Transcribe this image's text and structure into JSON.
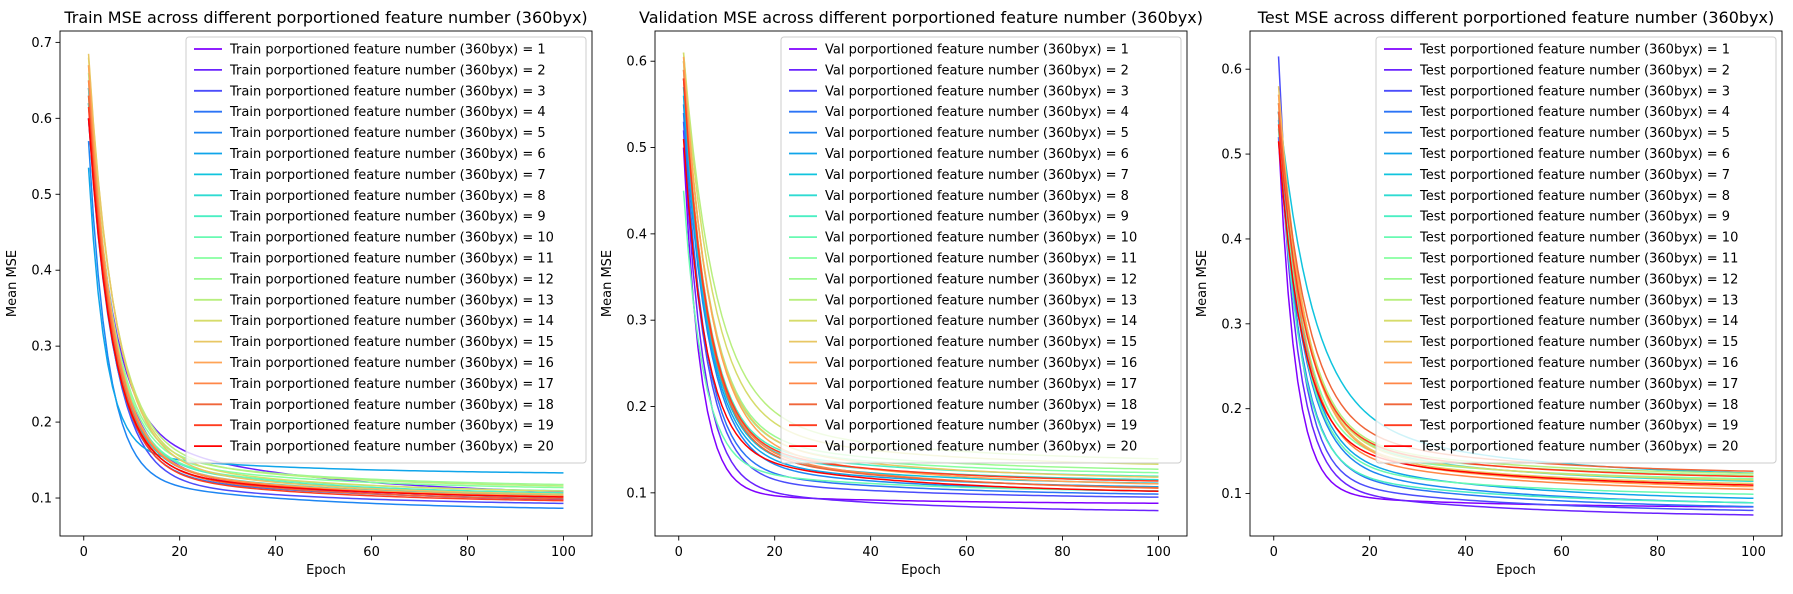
{
  "chart_data": [
    {
      "type": "line",
      "title": "Train MSE across different porportioned feature number (360byx)",
      "xlabel": "Epoch",
      "ylabel": "Mean MSE",
      "xlim": [
        -4.95,
        105.95
      ],
      "ylim": [
        0.05,
        0.715
      ],
      "xticks": [
        0,
        20,
        40,
        60,
        80,
        100
      ],
      "yticks": [
        0.1,
        0.2,
        0.3,
        0.4,
        0.5,
        0.6,
        0.7
      ],
      "xtick_labels": [
        "0",
        "20",
        "40",
        "60",
        "80",
        "100"
      ],
      "ytick_labels": [
        "0.1",
        "0.2",
        "0.3",
        "0.4",
        "0.5",
        "0.6",
        "0.7"
      ],
      "grid": false,
      "legend": "upper right",
      "series": [
        {
          "name": "Train porportioned feature number (360byx) = 1",
          "color": "#8000ff",
          "start": 0.6,
          "end": 0.094,
          "knee": 0.15,
          "tau": 5.5
        },
        {
          "name": "Train porportioned feature number (360byx) = 2",
          "color": "#6a23fe",
          "start": 0.64,
          "end": 0.102,
          "knee": 0.19,
          "tau": 5.0
        },
        {
          "name": "Train porportioned feature number (360byx) = 3",
          "color": "#4b4dfb",
          "start": 0.62,
          "end": 0.09,
          "knee": 0.13,
          "tau": 5.0
        },
        {
          "name": "Train porportioned feature number (360byx) = 4",
          "color": "#2c74f6",
          "start": 0.6,
          "end": 0.096,
          "knee": 0.14,
          "tau": 5.0
        },
        {
          "name": "Train porportioned feature number (360byx) = 5",
          "color": "#1e86f2",
          "start": 0.57,
          "end": 0.083,
          "knee": 0.13,
          "tau": 4.0
        },
        {
          "name": "Train porportioned feature number (360byx) = 6",
          "color": "#0fa5ea",
          "start": 0.535,
          "end": 0.131,
          "knee": 0.16,
          "tau": 3.5
        },
        {
          "name": "Train porportioned feature number (360byx) = 7",
          "color": "#10c4de",
          "start": 0.62,
          "end": 0.098,
          "knee": 0.15,
          "tau": 5.0
        },
        {
          "name": "Train porportioned feature number (360byx) = 8",
          "color": "#2edbd2",
          "start": 0.64,
          "end": 0.1,
          "knee": 0.15,
          "tau": 5.0
        },
        {
          "name": "Train porportioned feature number (360byx) = 9",
          "color": "#4aefc3",
          "start": 0.62,
          "end": 0.103,
          "knee": 0.155,
          "tau": 5.0
        },
        {
          "name": "Train porportioned feature number (360byx) = 10",
          "color": "#68fab2",
          "start": 0.63,
          "end": 0.106,
          "knee": 0.155,
          "tau": 5.0
        },
        {
          "name": "Train porportioned feature number (360byx) = 11",
          "color": "#86ffa0",
          "start": 0.65,
          "end": 0.11,
          "knee": 0.16,
          "tau": 5.0
        },
        {
          "name": "Train porportioned feature number (360byx) = 12",
          "color": "#9cfa92",
          "start": 0.66,
          "end": 0.114,
          "knee": 0.165,
          "tau": 5.0
        },
        {
          "name": "Train porportioned feature number (360byx) = 13",
          "color": "#b8ef7f",
          "start": 0.67,
          "end": 0.112,
          "knee": 0.165,
          "tau": 5.5
        },
        {
          "name": "Train porportioned feature number (360byx) = 14",
          "color": "#d6dc6b",
          "start": 0.68,
          "end": 0.105,
          "knee": 0.16,
          "tau": 5.5
        },
        {
          "name": "Train porportioned feature number (360byx) = 15",
          "color": "#e8c764",
          "start": 0.685,
          "end": 0.101,
          "knee": 0.155,
          "tau": 5.5
        },
        {
          "name": "Train porportioned feature number (360byx) = 16",
          "color": "#ffa456",
          "start": 0.67,
          "end": 0.099,
          "knee": 0.15,
          "tau": 5.0
        },
        {
          "name": "Train porportioned feature number (360byx) = 17",
          "color": "#ff8748",
          "start": 0.65,
          "end": 0.097,
          "knee": 0.15,
          "tau": 5.0
        },
        {
          "name": "Train porportioned feature number (360byx) = 18",
          "color": "#f0663a",
          "start": 0.63,
          "end": 0.095,
          "knee": 0.145,
          "tau": 5.0
        },
        {
          "name": "Train porportioned feature number (360byx) = 19",
          "color": "#ff3c1f",
          "start": 0.615,
          "end": 0.093,
          "knee": 0.14,
          "tau": 5.0
        },
        {
          "name": "Train porportioned feature number (360byx) = 20",
          "color": "#ff0000",
          "start": 0.6,
          "end": 0.098,
          "knee": 0.145,
          "tau": 5.0
        }
      ]
    },
    {
      "type": "line",
      "title": "Validation MSE across different porportioned feature number (360byx)",
      "xlabel": "Epoch",
      "ylabel": "Mean MSE",
      "xlim": [
        -4.95,
        105.95
      ],
      "ylim": [
        0.05,
        0.635
      ],
      "xticks": [
        0,
        20,
        40,
        60,
        80,
        100
      ],
      "yticks": [
        0.1,
        0.2,
        0.3,
        0.4,
        0.5,
        0.6
      ],
      "xtick_labels": [
        "0",
        "20",
        "40",
        "60",
        "80",
        "100"
      ],
      "ytick_labels": [
        "0.1",
        "0.2",
        "0.3",
        "0.4",
        "0.5",
        "0.6"
      ],
      "grid": false,
      "legend": "upper right",
      "series": [
        {
          "name": "Val porportioned feature number (360byx) = 1",
          "color": "#8000ff",
          "start": 0.5,
          "end": 0.087,
          "knee": 0.1,
          "tau": 3.5
        },
        {
          "name": "Val porportioned feature number (360byx) = 2",
          "color": "#6a23fe",
          "start": 0.52,
          "end": 0.077,
          "knee": 0.11,
          "tau": 4.0
        },
        {
          "name": "Val porportioned feature number (360byx) = 3",
          "color": "#4b4dfb",
          "start": 0.53,
          "end": 0.093,
          "knee": 0.12,
          "tau": 4.5
        },
        {
          "name": "Val porportioned feature number (360byx) = 4",
          "color": "#2c74f6",
          "start": 0.54,
          "end": 0.096,
          "knee": 0.13,
          "tau": 4.5
        },
        {
          "name": "Val porportioned feature number (360byx) = 5",
          "color": "#1e86f2",
          "start": 0.55,
          "end": 0.099,
          "knee": 0.14,
          "tau": 5.0
        },
        {
          "name": "Val porportioned feature number (360byx) = 6",
          "color": "#0fa5ea",
          "start": 0.56,
          "end": 0.104,
          "knee": 0.145,
          "tau": 5.0
        },
        {
          "name": "Val porportioned feature number (360byx) = 7",
          "color": "#10c4de",
          "start": 0.57,
          "end": 0.108,
          "knee": 0.15,
          "tau": 5.0
        },
        {
          "name": "Val porportioned feature number (360byx) = 8",
          "color": "#2edbd2",
          "start": 0.58,
          "end": 0.112,
          "knee": 0.155,
          "tau": 5.0
        },
        {
          "name": "Val porportioned feature number (360byx) = 9",
          "color": "#4aefc3",
          "start": 0.59,
          "end": 0.116,
          "knee": 0.16,
          "tau": 5.0
        },
        {
          "name": "Val porportioned feature number (360byx) = 10",
          "color": "#68fab2",
          "start": 0.45,
          "end": 0.1,
          "knee": 0.13,
          "tau": 4.0
        },
        {
          "name": "Val porportioned feature number (360byx) = 11",
          "color": "#86ffa0",
          "start": 0.6,
          "end": 0.12,
          "knee": 0.165,
          "tau": 5.5
        },
        {
          "name": "Val porportioned feature number (360byx) = 12",
          "color": "#9cfa92",
          "start": 0.6,
          "end": 0.124,
          "knee": 0.17,
          "tau": 5.5
        },
        {
          "name": "Val porportioned feature number (360byx) = 13",
          "color": "#b8ef7f",
          "start": 0.61,
          "end": 0.135,
          "knee": 0.195,
          "tau": 6.5
        },
        {
          "name": "Val porportioned feature number (360byx) = 14",
          "color": "#d6dc6b",
          "start": 0.61,
          "end": 0.129,
          "knee": 0.185,
          "tau": 6.0
        },
        {
          "name": "Val porportioned feature number (360byx) = 15",
          "color": "#e8c764",
          "start": 0.6,
          "end": 0.114,
          "knee": 0.17,
          "tau": 5.5
        },
        {
          "name": "Val porportioned feature number (360byx) = 16",
          "color": "#ffa456",
          "start": 0.605,
          "end": 0.106,
          "knee": 0.165,
          "tau": 5.5
        },
        {
          "name": "Val porportioned feature number (360byx) = 17",
          "color": "#ff8748",
          "start": 0.59,
          "end": 0.101,
          "knee": 0.16,
          "tau": 5.0
        },
        {
          "name": "Val porportioned feature number (360byx) = 18",
          "color": "#f0663a",
          "start": 0.58,
          "end": 0.102,
          "knee": 0.155,
          "tau": 5.0
        },
        {
          "name": "Val porportioned feature number (360byx) = 19",
          "color": "#ff3c1f",
          "start": 0.58,
          "end": 0.11,
          "knee": 0.16,
          "tau": 5.0
        },
        {
          "name": "Val porportioned feature number (360byx) = 20",
          "color": "#ff0000",
          "start": 0.51,
          "end": 0.098,
          "knee": 0.15,
          "tau": 4.5
        }
      ]
    },
    {
      "type": "line",
      "title": "Test MSE across different porportioned feature number (360byx)",
      "xlabel": "Epoch",
      "ylabel": "Mean MSE",
      "xlim": [
        -4.95,
        105.95
      ],
      "ylim": [
        0.05,
        0.645
      ],
      "xticks": [
        0,
        20,
        40,
        60,
        80,
        100
      ],
      "yticks": [
        0.1,
        0.2,
        0.3,
        0.4,
        0.5,
        0.6
      ],
      "xtick_labels": [
        "0",
        "20",
        "40",
        "60",
        "80",
        "100"
      ],
      "ytick_labels": [
        "0.1",
        "0.2",
        "0.3",
        "0.4",
        "0.5",
        "0.6"
      ],
      "grid": false,
      "legend": "upper right",
      "series": [
        {
          "name": "Test porportioned feature number (360byx) = 1",
          "color": "#8000ff",
          "start": 0.52,
          "end": 0.083,
          "knee": 0.1,
          "tau": 3.5
        },
        {
          "name": "Test porportioned feature number (360byx) = 2",
          "color": "#6a23fe",
          "start": 0.55,
          "end": 0.072,
          "knee": 0.11,
          "tau": 4.0
        },
        {
          "name": "Test porportioned feature number (360byx) = 3",
          "color": "#4b4dfb",
          "start": 0.615,
          "end": 0.077,
          "knee": 0.12,
          "tau": 4.0
        },
        {
          "name": "Test porportioned feature number (360byx) = 4",
          "color": "#2c74f6",
          "start": 0.55,
          "end": 0.081,
          "knee": 0.13,
          "tau": 4.5
        },
        {
          "name": "Test porportioned feature number (360byx) = 5",
          "color": "#1e86f2",
          "start": 0.54,
          "end": 0.085,
          "knee": 0.14,
          "tau": 5.0
        },
        {
          "name": "Test porportioned feature number (360byx) = 6",
          "color": "#0fa5ea",
          "start": 0.55,
          "end": 0.09,
          "knee": 0.15,
          "tau": 5.0
        },
        {
          "name": "Test porportioned feature number (360byx) = 7",
          "color": "#10c4de",
          "start": 0.56,
          "end": 0.118,
          "knee": 0.2,
          "tau": 7.0
        },
        {
          "name": "Test porportioned feature number (360byx) = 8",
          "color": "#2edbd2",
          "start": 0.55,
          "end": 0.11,
          "knee": 0.17,
          "tau": 5.5
        },
        {
          "name": "Test porportioned feature number (360byx) = 9",
          "color": "#4aefc3",
          "start": 0.53,
          "end": 0.086,
          "knee": 0.13,
          "tau": 4.5
        },
        {
          "name": "Test porportioned feature number (360byx) = 10",
          "color": "#68fab2",
          "start": 0.55,
          "end": 0.096,
          "knee": 0.14,
          "tau": 5.0
        },
        {
          "name": "Test porportioned feature number (360byx) = 11",
          "color": "#86ffa0",
          "start": 0.56,
          "end": 0.114,
          "knee": 0.16,
          "tau": 5.0
        },
        {
          "name": "Test porportioned feature number (360byx) = 12",
          "color": "#9cfa92",
          "start": 0.55,
          "end": 0.118,
          "knee": 0.165,
          "tau": 5.5
        },
        {
          "name": "Test porportioned feature number (360byx) = 13",
          "color": "#b8ef7f",
          "start": 0.56,
          "end": 0.12,
          "knee": 0.17,
          "tau": 5.5
        },
        {
          "name": "Test porportioned feature number (360byx) = 14",
          "color": "#d6dc6b",
          "start": 0.57,
          "end": 0.112,
          "knee": 0.165,
          "tau": 5.5
        },
        {
          "name": "Test porportioned feature number (360byx) = 15",
          "color": "#e8c764",
          "start": 0.58,
          "end": 0.108,
          "knee": 0.16,
          "tau": 5.5
        },
        {
          "name": "Test porportioned feature number (360byx) = 16",
          "color": "#ffa456",
          "start": 0.57,
          "end": 0.104,
          "knee": 0.16,
          "tau": 5.5
        },
        {
          "name": "Test porportioned feature number (360byx) = 17",
          "color": "#ff8748",
          "start": 0.56,
          "end": 0.101,
          "knee": 0.155,
          "tau": 5.0
        },
        {
          "name": "Test porportioned feature number (360byx) = 18",
          "color": "#f0663a",
          "start": 0.55,
          "end": 0.122,
          "knee": 0.18,
          "tau": 6.0
        },
        {
          "name": "Test porportioned feature number (360byx) = 19",
          "color": "#ff3c1f",
          "start": 0.535,
          "end": 0.116,
          "knee": 0.17,
          "tau": 5.5
        },
        {
          "name": "Test porportioned feature number (360byx) = 20",
          "color": "#ff0000",
          "start": 0.515,
          "end": 0.106,
          "knee": 0.16,
          "tau": 5.0
        }
      ]
    }
  ]
}
